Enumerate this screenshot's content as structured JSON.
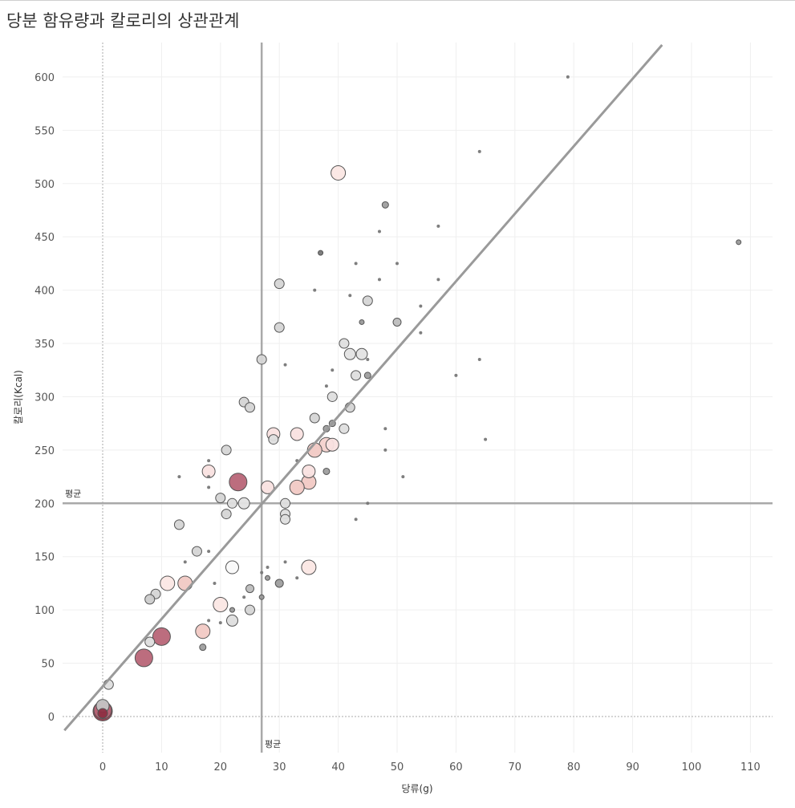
{
  "page": {
    "title": "당분 함유량과 칼로리의 상관관계"
  },
  "chart_data": {
    "type": "scatter",
    "title": "당분 함유량과 칼로리의 상관관계",
    "xlabel": "당류(g)",
    "ylabel": "칼로리(Kcal)",
    "xlim": [
      -6.5,
      114
    ],
    "ylim": [
      -33,
      632
    ],
    "x_ticks": [
      0,
      10,
      20,
      30,
      40,
      50,
      60,
      70,
      80,
      90,
      100,
      110
    ],
    "y_ticks": [
      0,
      50,
      100,
      150,
      200,
      250,
      300,
      350,
      400,
      450,
      500,
      550,
      600
    ],
    "grid": true,
    "mean_x": 27,
    "mean_y": 200,
    "mean_label": "평균",
    "trend_line": [
      [
        -6.5,
        -13
      ],
      [
        95,
        630
      ]
    ],
    "colors": {
      "mean_line": "#a9a9a9",
      "trend_line": "#9a9a9a",
      "gray": "#c8c8c8",
      "light_pink": "#f8e4e2",
      "pink": "#efc7c3",
      "mauve": "#b86577",
      "dark": "#9e3a4e"
    },
    "points": [
      {
        "x": 79,
        "y": 600,
        "size": 2,
        "color": "#777777"
      },
      {
        "x": 64,
        "y": 530,
        "size": 2,
        "color": "#777777"
      },
      {
        "x": 108,
        "y": 445,
        "size": 3,
        "color": "#999999"
      },
      {
        "x": 40,
        "y": 510,
        "size": 9,
        "color": "#fbe7e4"
      },
      {
        "x": 48,
        "y": 480,
        "size": 4,
        "color": "#9e9e9e"
      },
      {
        "x": 57,
        "y": 460,
        "size": 2,
        "color": "#777777"
      },
      {
        "x": 47,
        "y": 455,
        "size": 2,
        "color": "#777777"
      },
      {
        "x": 37,
        "y": 435,
        "size": 3,
        "color": "#777777"
      },
      {
        "x": 43,
        "y": 425,
        "size": 2,
        "color": "#777777"
      },
      {
        "x": 50,
        "y": 425,
        "size": 2,
        "color": "#777777"
      },
      {
        "x": 47,
        "y": 410,
        "size": 2,
        "color": "#777777"
      },
      {
        "x": 57,
        "y": 410,
        "size": 2,
        "color": "#777777"
      },
      {
        "x": 30,
        "y": 406,
        "size": 6,
        "color": "#d5d5d5"
      },
      {
        "x": 36,
        "y": 400,
        "size": 2,
        "color": "#777777"
      },
      {
        "x": 42,
        "y": 395,
        "size": 2,
        "color": "#777777"
      },
      {
        "x": 45,
        "y": 390,
        "size": 6,
        "color": "#d5d5d5"
      },
      {
        "x": 54,
        "y": 385,
        "size": 2,
        "color": "#777777"
      },
      {
        "x": 44,
        "y": 370,
        "size": 3,
        "color": "#999999"
      },
      {
        "x": 50,
        "y": 370,
        "size": 5,
        "color": "#bdbdbd"
      },
      {
        "x": 30,
        "y": 365,
        "size": 6,
        "color": "#d5d5d5"
      },
      {
        "x": 54,
        "y": 360,
        "size": 2,
        "color": "#777777"
      },
      {
        "x": 41,
        "y": 350,
        "size": 6,
        "color": "#dedede"
      },
      {
        "x": 42,
        "y": 340,
        "size": 7,
        "color": "#e3e3e3"
      },
      {
        "x": 44,
        "y": 340,
        "size": 7,
        "color": "#e3e3e3"
      },
      {
        "x": 27,
        "y": 335,
        "size": 6,
        "color": "#d5d5d5"
      },
      {
        "x": 45,
        "y": 335,
        "size": 2,
        "color": "#777777"
      },
      {
        "x": 64,
        "y": 335,
        "size": 2,
        "color": "#777777"
      },
      {
        "x": 31,
        "y": 330,
        "size": 2,
        "color": "#777777"
      },
      {
        "x": 39,
        "y": 325,
        "size": 2,
        "color": "#777777"
      },
      {
        "x": 43,
        "y": 320,
        "size": 6,
        "color": "#dedede"
      },
      {
        "x": 45,
        "y": 320,
        "size": 4,
        "color": "#9e9e9e"
      },
      {
        "x": 60,
        "y": 320,
        "size": 2,
        "color": "#777777"
      },
      {
        "x": 38,
        "y": 310,
        "size": 2,
        "color": "#777777"
      },
      {
        "x": 39,
        "y": 300,
        "size": 6,
        "color": "#dedede"
      },
      {
        "x": 24,
        "y": 295,
        "size": 6,
        "color": "#d5d5d5"
      },
      {
        "x": 25,
        "y": 290,
        "size": 6,
        "color": "#d5d5d5"
      },
      {
        "x": 42,
        "y": 290,
        "size": 6,
        "color": "#d5d5d5"
      },
      {
        "x": 36,
        "y": 280,
        "size": 6,
        "color": "#d5d5d5"
      },
      {
        "x": 39,
        "y": 275,
        "size": 4,
        "color": "#9e9e9e"
      },
      {
        "x": 41,
        "y": 270,
        "size": 6,
        "color": "#dedede"
      },
      {
        "x": 38,
        "y": 270,
        "size": 4,
        "color": "#9e9e9e"
      },
      {
        "x": 48,
        "y": 270,
        "size": 2,
        "color": "#777777"
      },
      {
        "x": 29,
        "y": 265,
        "size": 8,
        "color": "#f9e2e0"
      },
      {
        "x": 33,
        "y": 265,
        "size": 8,
        "color": "#f9e2e0"
      },
      {
        "x": 29,
        "y": 260,
        "size": 6,
        "color": "#dedede"
      },
      {
        "x": 65,
        "y": 260,
        "size": 2,
        "color": "#777777"
      },
      {
        "x": 38,
        "y": 255,
        "size": 9,
        "color": "#f4d2ce"
      },
      {
        "x": 39,
        "y": 255,
        "size": 8,
        "color": "#f9e2e0"
      },
      {
        "x": 36,
        "y": 250,
        "size": 9,
        "color": "#f1c9c4"
      },
      {
        "x": 21,
        "y": 250,
        "size": 6,
        "color": "#d5d5d5"
      },
      {
        "x": 48,
        "y": 250,
        "size": 2,
        "color": "#777777"
      },
      {
        "x": 18,
        "y": 240,
        "size": 2,
        "color": "#777777"
      },
      {
        "x": 33,
        "y": 240,
        "size": 2,
        "color": "#777777"
      },
      {
        "x": 18,
        "y": 230,
        "size": 8,
        "color": "#f9e2e0"
      },
      {
        "x": 35,
        "y": 230,
        "size": 8,
        "color": "#f9e2e0"
      },
      {
        "x": 38,
        "y": 230,
        "size": 4,
        "color": "#9e9e9e"
      },
      {
        "x": 13,
        "y": 225,
        "size": 2,
        "color": "#777777"
      },
      {
        "x": 18,
        "y": 225,
        "size": 2,
        "color": "#777777"
      },
      {
        "x": 51,
        "y": 225,
        "size": 2,
        "color": "#777777"
      },
      {
        "x": 23,
        "y": 220,
        "size": 11,
        "color": "#b86577"
      },
      {
        "x": 35,
        "y": 220,
        "size": 9,
        "color": "#f1c9c4"
      },
      {
        "x": 28,
        "y": 215,
        "size": 8,
        "color": "#f9e2e0"
      },
      {
        "x": 33,
        "y": 215,
        "size": 9,
        "color": "#f1c9c4"
      },
      {
        "x": 18,
        "y": 215,
        "size": 2,
        "color": "#777777"
      },
      {
        "x": 20,
        "y": 205,
        "size": 6,
        "color": "#d5d5d5"
      },
      {
        "x": 22,
        "y": 200,
        "size": 6,
        "color": "#dedede"
      },
      {
        "x": 24,
        "y": 200,
        "size": 7,
        "color": "#e3e3e3"
      },
      {
        "x": 31,
        "y": 200,
        "size": 6,
        "color": "#dedede"
      },
      {
        "x": 45,
        "y": 200,
        "size": 2,
        "color": "#777777"
      },
      {
        "x": 21,
        "y": 190,
        "size": 6,
        "color": "#d5d5d5"
      },
      {
        "x": 31,
        "y": 190,
        "size": 6,
        "color": "#dedede"
      },
      {
        "x": 31,
        "y": 185,
        "size": 6,
        "color": "#dedede"
      },
      {
        "x": 43,
        "y": 185,
        "size": 2,
        "color": "#777777"
      },
      {
        "x": 13,
        "y": 180,
        "size": 6,
        "color": "#d5d5d5"
      },
      {
        "x": 16,
        "y": 155,
        "size": 6,
        "color": "#d5d5d5"
      },
      {
        "x": 18,
        "y": 155,
        "size": 2,
        "color": "#777777"
      },
      {
        "x": 14,
        "y": 145,
        "size": 2,
        "color": "#777777"
      },
      {
        "x": 31,
        "y": 145,
        "size": 2,
        "color": "#777777"
      },
      {
        "x": 22,
        "y": 140,
        "size": 8,
        "color": "#f9f9f9"
      },
      {
        "x": 35,
        "y": 140,
        "size": 9,
        "color": "#fbe7e4"
      },
      {
        "x": 28,
        "y": 140,
        "size": 2,
        "color": "#777777"
      },
      {
        "x": 27,
        "y": 135,
        "size": 2,
        "color": "#777777"
      },
      {
        "x": 28,
        "y": 130,
        "size": 3,
        "color": "#999999"
      },
      {
        "x": 33,
        "y": 130,
        "size": 2,
        "color": "#777777"
      },
      {
        "x": 11,
        "y": 125,
        "size": 9,
        "color": "#fbe7e4"
      },
      {
        "x": 14,
        "y": 125,
        "size": 9,
        "color": "#f1c9c4"
      },
      {
        "x": 19,
        "y": 125,
        "size": 2,
        "color": "#777777"
      },
      {
        "x": 30,
        "y": 125,
        "size": 5,
        "color": "#9e9e9e"
      },
      {
        "x": 25,
        "y": 120,
        "size": 5,
        "color": "#bdbdbd"
      },
      {
        "x": 9,
        "y": 115,
        "size": 6,
        "color": "#d5d5d5"
      },
      {
        "x": 24,
        "y": 112,
        "size": 2,
        "color": "#777777"
      },
      {
        "x": 27,
        "y": 112,
        "size": 3,
        "color": "#999999"
      },
      {
        "x": 8,
        "y": 110,
        "size": 6,
        "color": "#cccccc"
      },
      {
        "x": 20,
        "y": 105,
        "size": 9,
        "color": "#fbe7e4"
      },
      {
        "x": 22,
        "y": 100,
        "size": 3,
        "color": "#999999"
      },
      {
        "x": 25,
        "y": 100,
        "size": 6,
        "color": "#d5d5d5"
      },
      {
        "x": 22,
        "y": 90,
        "size": 7,
        "color": "#dedede"
      },
      {
        "x": 18,
        "y": 90,
        "size": 2,
        "color": "#777777"
      },
      {
        "x": 20,
        "y": 88,
        "size": 2,
        "color": "#777777"
      },
      {
        "x": 17,
        "y": 80,
        "size": 9,
        "color": "#f1c9c4"
      },
      {
        "x": 10,
        "y": 75,
        "size": 11,
        "color": "#b86577"
      },
      {
        "x": 8,
        "y": 70,
        "size": 6,
        "color": "#dedede"
      },
      {
        "x": 17,
        "y": 65,
        "size": 4,
        "color": "#9e9e9e"
      },
      {
        "x": 7,
        "y": 55,
        "size": 11,
        "color": "#b86577"
      },
      {
        "x": 1,
        "y": 30,
        "size": 6,
        "color": "#dedede"
      },
      {
        "x": 0,
        "y": 10,
        "size": 8,
        "color": "#c4c4c4"
      },
      {
        "x": 0,
        "y": 6,
        "size": 11,
        "color": "#b86577"
      },
      {
        "x": 0,
        "y": 5,
        "size": 12,
        "color": "#9e3a4e"
      },
      {
        "x": 0,
        "y": 3,
        "size": 6,
        "color": "#8e2e42"
      }
    ]
  }
}
